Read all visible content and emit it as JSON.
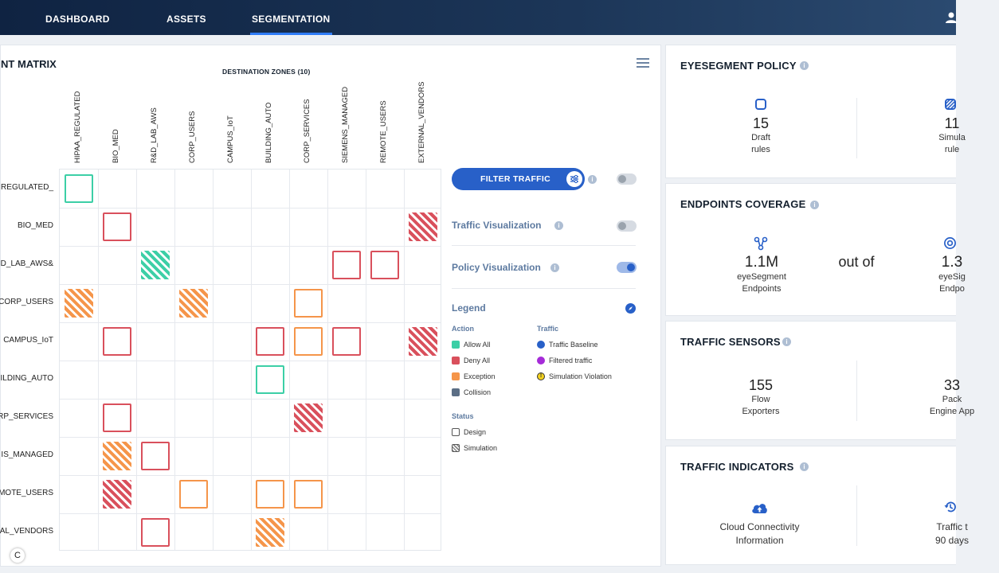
{
  "nav": {
    "tabs": [
      {
        "label": "DASHBOARD"
      },
      {
        "label": "ASSETS"
      },
      {
        "label": "SEGMENTATION",
        "active": true
      }
    ],
    "user_icon": "user-icon"
  },
  "matrix": {
    "title": "NT MATRIX",
    "dest_title": "DESTINATION ZONES  (10)",
    "columns": [
      "HIPAA_REGULATED",
      "BIO_MED",
      "R&D_LAB_AWS",
      "CORP_USERS",
      "CAMPUS_IoT",
      "BUILDING_AUTO",
      "CORP_SERVICES",
      "SIEMENS_MANAGED",
      "REMOTE_USERS",
      "EXTERNAL_VENDORS"
    ],
    "rows": [
      "_REGULATED",
      "BIO_MED",
      "&D_LAB_AWS",
      "CORP_USERS",
      "CAMPUS_IoT",
      "ILDING_AUTO",
      "ORP_SERVICES",
      "IS_MANAGED",
      "MOTE_USERS",
      "AL_VENDORS"
    ],
    "cells": [
      {
        "r": 0,
        "c": 0,
        "action": "allow",
        "status": "design"
      },
      {
        "r": 1,
        "c": 1,
        "action": "deny",
        "status": "design"
      },
      {
        "r": 1,
        "c": 9,
        "action": "deny",
        "status": "simulation"
      },
      {
        "r": 2,
        "c": 2,
        "action": "allow",
        "status": "simulation"
      },
      {
        "r": 2,
        "c": 7,
        "action": "deny",
        "status": "design"
      },
      {
        "r": 2,
        "c": 8,
        "action": "deny",
        "status": "design"
      },
      {
        "r": 3,
        "c": 0,
        "action": "exception",
        "status": "simulation"
      },
      {
        "r": 3,
        "c": 3,
        "action": "exception",
        "status": "simulation"
      },
      {
        "r": 3,
        "c": 6,
        "action": "exception",
        "status": "design"
      },
      {
        "r": 4,
        "c": 1,
        "action": "deny",
        "status": "design"
      },
      {
        "r": 4,
        "c": 5,
        "action": "deny",
        "status": "design"
      },
      {
        "r": 4,
        "c": 6,
        "action": "exception",
        "status": "design"
      },
      {
        "r": 4,
        "c": 7,
        "action": "deny",
        "status": "design"
      },
      {
        "r": 4,
        "c": 9,
        "action": "deny",
        "status": "simulation"
      },
      {
        "r": 5,
        "c": 5,
        "action": "allow",
        "status": "design"
      },
      {
        "r": 6,
        "c": 1,
        "action": "deny",
        "status": "design"
      },
      {
        "r": 6,
        "c": 6,
        "action": "deny",
        "status": "simulation"
      },
      {
        "r": 7,
        "c": 1,
        "action": "exception",
        "status": "simulation"
      },
      {
        "r": 7,
        "c": 2,
        "action": "deny",
        "status": "design"
      },
      {
        "r": 8,
        "c": 1,
        "action": "deny",
        "status": "simulation"
      },
      {
        "r": 8,
        "c": 3,
        "action": "exception",
        "status": "design"
      },
      {
        "r": 8,
        "c": 5,
        "action": "exception",
        "status": "design"
      },
      {
        "r": 8,
        "c": 6,
        "action": "exception",
        "status": "design"
      },
      {
        "r": 9,
        "c": 2,
        "action": "deny",
        "status": "design"
      },
      {
        "r": 9,
        "c": 5,
        "action": "exception",
        "status": "simulation"
      }
    ],
    "colors": {
      "allow": "#3ccfa6",
      "deny": "#d9505c",
      "exception": "#f5954a"
    }
  },
  "filter": {
    "button_label": "FILTER TRAFFIC",
    "traffic_visualization": "Traffic Visualization",
    "policy_visualization": "Policy Visualization",
    "filter_toggle_on": false,
    "traffic_toggle_on": false,
    "policy_toggle_on": true
  },
  "legend": {
    "title": "Legend",
    "action_head": "Action",
    "traffic_head": "Traffic",
    "status_head": "Status",
    "actions": [
      {
        "label": "Allow All",
        "color": "#3ccfa6"
      },
      {
        "label": "Deny All",
        "color": "#d9505c"
      },
      {
        "label": "Exception",
        "color": "#f5954a"
      },
      {
        "label": "Collision",
        "color": "#5b6e85"
      }
    ],
    "traffic": [
      {
        "label": "Traffic Baseline",
        "color": "#2860c8"
      },
      {
        "label": "Filtered traffic",
        "color": "#a52bd8"
      },
      {
        "label": "Simulation Violation",
        "color": "#f4d21f"
      }
    ],
    "status": [
      {
        "label": "Design"
      },
      {
        "label": "Simulation"
      }
    ]
  },
  "policy": {
    "title": "EYESEGMENT POLICY",
    "draft_num": "15",
    "draft_cap1": "Draft",
    "draft_cap2": "rules",
    "sim_num": "11",
    "sim_cap1": "Simula",
    "sim_cap2": "rule"
  },
  "coverage": {
    "title": "ENDPOINTS COVERAGE",
    "left_num": "1.1M",
    "left_cap1": "eyeSegment",
    "left_cap2": "Endpoints",
    "mid": "out of",
    "right_num": "1.3",
    "right_cap1": "eyeSig",
    "right_cap2": "Endpo"
  },
  "sensors": {
    "title": "TRAFFIC SENSORS",
    "left_num": "155",
    "left_cap1": "Flow",
    "left_cap2": "Exporters",
    "right_num": "33",
    "right_cap1": "Pack",
    "right_cap2": "Engine App"
  },
  "indicators": {
    "title": "TRAFFIC INDICATORS",
    "left_cap1": "Cloud Connectivity",
    "left_cap2": "Information",
    "right_cap1": "Traffic t",
    "right_cap2": "90 days"
  },
  "footer": {
    "copyright": "C"
  }
}
